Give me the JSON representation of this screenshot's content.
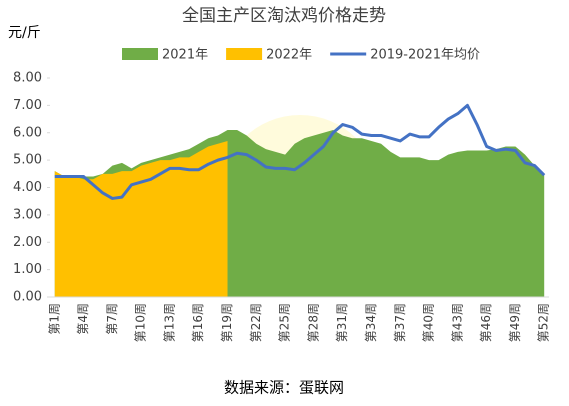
{
  "chart_data": {
    "type": "area-line",
    "title": "全国主产区淘汰鸡价格走势",
    "y_unit": "元/斤",
    "source": "数据来源：蛋联网",
    "watermark": "蛋联网",
    "categories": [
      "第1周",
      null,
      null,
      "第4周",
      null,
      null,
      "第7周",
      null,
      null,
      "第10周",
      null,
      null,
      "第13周",
      null,
      null,
      "第16周",
      null,
      null,
      "第19周",
      null,
      null,
      "第22周",
      null,
      null,
      "第25周",
      null,
      null,
      "第28周",
      null,
      null,
      "第31周",
      null,
      null,
      "第34周",
      null,
      null,
      "第37周",
      null,
      null,
      "第40周",
      null,
      null,
      "第43周",
      null,
      null,
      "第46周",
      null,
      null,
      "第49周",
      null,
      null,
      "第52周"
    ],
    "series": [
      {
        "name": "2021年",
        "kind": "area",
        "color": "#70ad47",
        "values": [
          4.6,
          4.4,
          4.4,
          4.4,
          4.4,
          4.5,
          4.8,
          4.9,
          4.7,
          4.9,
          5.0,
          5.1,
          5.2,
          5.3,
          5.4,
          5.6,
          5.8,
          5.9,
          6.1,
          6.1,
          5.9,
          5.6,
          5.4,
          5.3,
          5.2,
          5.6,
          5.8,
          5.9,
          6.0,
          6.1,
          5.9,
          5.8,
          5.8,
          5.7,
          5.6,
          5.3,
          5.1,
          5.1,
          5.1,
          5.0,
          5.0,
          5.2,
          5.3,
          5.35,
          5.35,
          5.35,
          5.4,
          5.5,
          5.5,
          5.2,
          4.8,
          4.5
        ]
      },
      {
        "name": "2022年",
        "kind": "area",
        "color": "#ffc000",
        "values": [
          4.6,
          4.4,
          4.4,
          4.3,
          4.3,
          4.5,
          4.5,
          4.6,
          4.6,
          4.8,
          4.9,
          5.0,
          5.0,
          5.1,
          5.1,
          5.3,
          5.5,
          5.6,
          5.7,
          null,
          null,
          null,
          null,
          null,
          null,
          null,
          null,
          null,
          null,
          null,
          null,
          null,
          null,
          null,
          null,
          null,
          null,
          null,
          null,
          null,
          null,
          null,
          null,
          null,
          null,
          null,
          null,
          null,
          null,
          null,
          null,
          null
        ]
      },
      {
        "name": "2019-2021年均价",
        "kind": "line",
        "color": "#4472c4",
        "values": [
          4.4,
          4.4,
          4.4,
          4.4,
          4.1,
          3.8,
          3.6,
          3.65,
          4.1,
          4.2,
          4.3,
          4.5,
          4.7,
          4.7,
          4.65,
          4.65,
          4.85,
          5.0,
          5.1,
          5.25,
          5.2,
          5.0,
          4.75,
          4.7,
          4.7,
          4.65,
          4.9,
          5.2,
          5.5,
          6.0,
          6.3,
          6.2,
          5.95,
          5.9,
          5.9,
          5.8,
          5.7,
          5.95,
          5.85,
          5.85,
          6.2,
          6.5,
          6.7,
          7.0,
          6.3,
          5.5,
          5.35,
          5.4,
          5.35,
          4.9,
          4.8,
          4.45
        ]
      }
    ],
    "ylim": [
      0,
      8
    ],
    "yticks": [
      {
        "value": 0,
        "label": "0.00"
      },
      {
        "value": 1,
        "label": "1.00"
      },
      {
        "value": 2,
        "label": "2.00"
      },
      {
        "value": 3,
        "label": "3.00"
      },
      {
        "value": 4,
        "label": "4.00"
      },
      {
        "value": 5,
        "label": "5.00"
      },
      {
        "value": 6,
        "label": "6.00"
      },
      {
        "value": 7,
        "label": "7.00"
      },
      {
        "value": 8,
        "label": "8.00"
      }
    ],
    "legend": "top"
  }
}
